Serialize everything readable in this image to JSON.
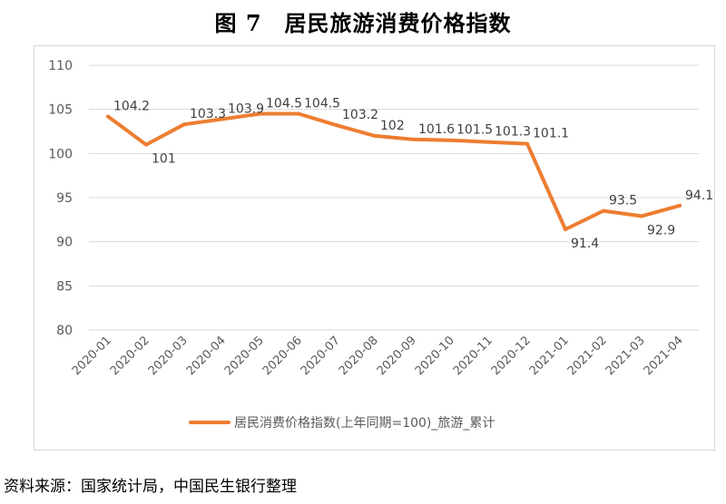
{
  "figure_title": "图 7　居民旅游消费价格指数",
  "source_note": "资料来源：国家统计局，中国民生银行整理",
  "chart_data": {
    "type": "line",
    "title": "",
    "xlabel": "",
    "ylabel": "",
    "ylim": [
      80,
      110
    ],
    "yticks": [
      80,
      85,
      90,
      95,
      100,
      105,
      110
    ],
    "grid": true,
    "legend_position": "bottom",
    "categories": [
      "2020-01",
      "2020-02",
      "2020-03",
      "2020-04",
      "2020-05",
      "2020-06",
      "2020-07",
      "2020-08",
      "2020-09",
      "2020-10",
      "2020-11",
      "2020-12",
      "2021-01",
      "2021-02",
      "2021-03",
      "2021-04"
    ],
    "series": [
      {
        "name": "居民消费价格指数(上年同期=100)_旅游_累计",
        "color": "#ED7D31",
        "values": [
          104.2,
          101,
          103.3,
          103.9,
          104.5,
          104.5,
          103.2,
          102,
          101.6,
          101.5,
          101.3,
          101.1,
          91.4,
          93.5,
          92.9,
          94.1
        ],
        "data_labels": [
          "104.2",
          "101",
          "103.3",
          "103.9",
          "104.5",
          "104.5",
          "103.2",
          "102",
          "101.6",
          "101.5",
          "101.3",
          "101.1",
          "91.4",
          "93.5",
          "92.9",
          "94.1"
        ]
      }
    ]
  }
}
